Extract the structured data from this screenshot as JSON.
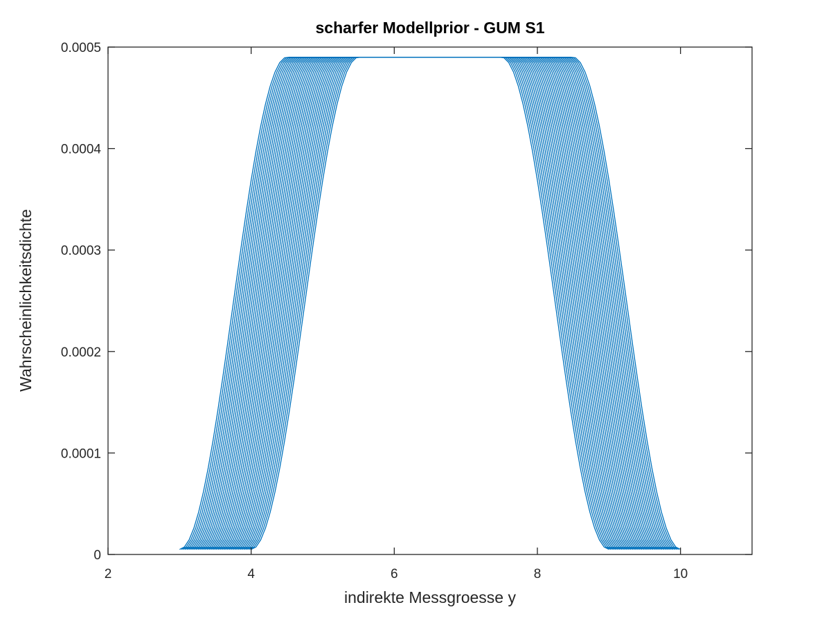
{
  "chart_data": {
    "type": "line",
    "title": "scharfer Modellprior - GUM S1",
    "xlabel": "indirekte Messgroesse y",
    "ylabel": "Wahrscheinlichkeitsdichte",
    "xlim": [
      2,
      11
    ],
    "ylim": [
      0,
      0.0005
    ],
    "x_ticks": [
      2,
      4,
      6,
      8,
      10
    ],
    "x_tick_labels": [
      "2",
      "4",
      "6",
      "8",
      "10"
    ],
    "y_ticks": [
      0,
      0.0001,
      0.0002,
      0.0003,
      0.0004,
      0.0005
    ],
    "y_tick_labels": [
      "0",
      "0.0001",
      "0.0002",
      "0.0003",
      "0.0004",
      "0.0005"
    ],
    "grid": false,
    "legend": "none",
    "line_color": "#0072bd",
    "family": {
      "description_shape": "trapezoid",
      "count": 40,
      "support_start_x": [
        3.0,
        4.0
      ],
      "support_width": 6.0,
      "ramp_width": 1.5,
      "plateau_value": 0.00049,
      "baseline_value": 5e-06
    }
  }
}
